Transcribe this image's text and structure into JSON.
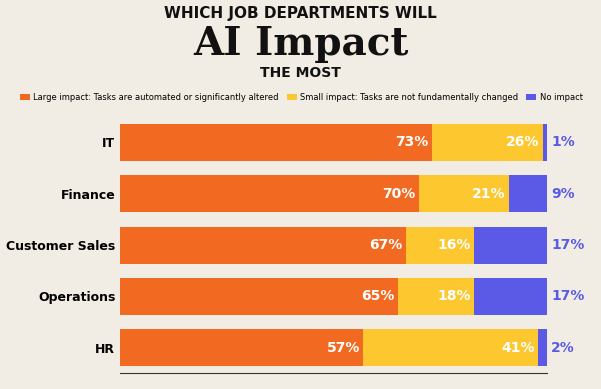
{
  "chart_data": {
    "type": "bar",
    "orientation": "horizontal",
    "stacked": true,
    "title": "WHICH JOB DEPARTMENTS WILL\nAI Impact\nTHE MOST",
    "categories": [
      "IT",
      "Finance",
      "Customer Sales",
      "Operations",
      "HR"
    ],
    "series": [
      {
        "name": "Large impact: Tasks are automated or significantly altered",
        "color": "#f26a21",
        "values": [
          73,
          70,
          67,
          65,
          57
        ],
        "value_labels": [
          "73%",
          "70%",
          "67%",
          "65%",
          "57%"
        ]
      },
      {
        "name": "Small impact: Tasks are not fundamentally changed",
        "color": "#fdc82f",
        "values": [
          26,
          21,
          16,
          18,
          41
        ],
        "value_labels": [
          "26%",
          "21%",
          "16%",
          "18%",
          "41%"
        ]
      },
      {
        "name": "No impact",
        "color": "#5a5ae6",
        "values": [
          1,
          9,
          17,
          17,
          2
        ],
        "value_labels": [
          "1%",
          "9%",
          "17%",
          "17%",
          "2%"
        ]
      }
    ],
    "xlim": [
      0,
      100
    ],
    "legend": "upper left",
    "data_labels": true,
    "tick_labels": "y",
    "grid": false
  }
}
